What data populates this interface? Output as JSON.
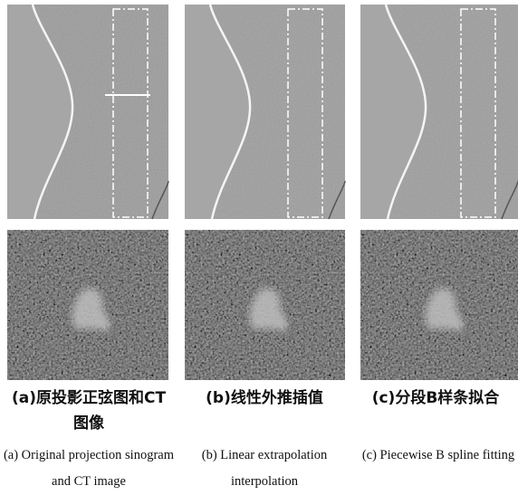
{
  "figure": {
    "panels": [
      {
        "caption_zh": "(a)原投影正弦图和CT图像",
        "caption_en": "(a) Original projection sinogram and CT image"
      },
      {
        "caption_zh": "(b)线性外推插值",
        "caption_en": "(b) Linear extrapolation interpolation"
      },
      {
        "caption_zh": "(c)分段B样条拟合",
        "caption_en": "(c) Piecewise B spline fitting"
      }
    ]
  }
}
